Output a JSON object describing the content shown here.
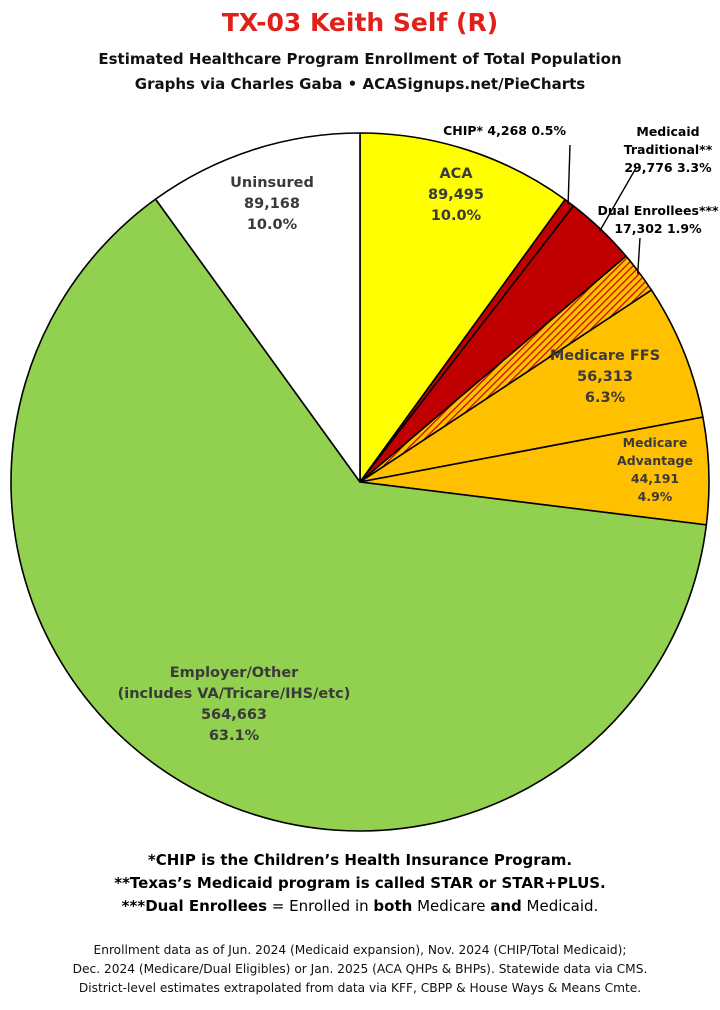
{
  "title": "TX-03 Keith Self (R)",
  "subtitle_line1": "Estimated Healthcare Program Enrollment of Total Population",
  "subtitle_line2": "Graphs via Charles Gaba  •  ACASignups.net/PieCharts",
  "chart_data": {
    "type": "pie",
    "start_angle_deg": 0,
    "direction": "clockwise",
    "slices": [
      {
        "name": "ACA",
        "label_lines": [
          "ACA",
          "89,495",
          "10.0%"
        ],
        "value": 89495,
        "percent": "10.0%",
        "color": "#ffff00",
        "pattern": "none"
      },
      {
        "name": "CHIP*",
        "label_lines": [
          "CHIP* 4,268 0.5%"
        ],
        "value": 4268,
        "percent": "0.5%",
        "color": "#c00000",
        "pattern": "none"
      },
      {
        "name": "Medicaid Traditional**",
        "label_lines": [
          "Medicaid",
          "Traditional**",
          "29,776 3.3%"
        ],
        "value": 29776,
        "percent": "3.3%",
        "color": "#c00000",
        "pattern": "none"
      },
      {
        "name": "Dual Enrollees***",
        "label_lines": [
          "Dual Enrollees***",
          "17,302 1.9%"
        ],
        "value": 17302,
        "percent": "1.9%",
        "color": "#ffc000",
        "pattern": "hatch"
      },
      {
        "name": "Medicare FFS",
        "label_lines": [
          "Medicare FFS",
          "56,313",
          "6.3%"
        ],
        "value": 56313,
        "percent": "6.3%",
        "color": "#ffc000",
        "pattern": "none"
      },
      {
        "name": "Medicare Advantage",
        "label_lines": [
          "Medicare",
          "Advantage",
          "44,191",
          "4.9%"
        ],
        "value": 44191,
        "percent": "4.9%",
        "color": "#ffc000",
        "pattern": "none"
      },
      {
        "name": "Employer/Other",
        "label_lines": [
          "Employer/Other",
          "(includes VA/Tricare/IHS/etc)",
          "564,663",
          "63.1%"
        ],
        "value": 564663,
        "percent": "63.1%",
        "color": "#92d050",
        "pattern": "none"
      },
      {
        "name": "Uninsured",
        "label_lines": [
          "Uninsured",
          "89,168",
          "10.0%"
        ],
        "value": 89168,
        "percent": "10.0%",
        "color": "#ffffff",
        "pattern": "none"
      }
    ]
  },
  "notes": {
    "line1": "*CHIP is the Children’s Health Insurance Program.",
    "line2_a": "**Texas’s Medicaid program is called ",
    "line2_b": "STAR or STAR+PLUS.",
    "line3_a": "***Dual Enrollees",
    "line3_b": " = Enrolled in ",
    "line3_c": "both",
    "line3_d": " Medicare ",
    "line3_e": "and",
    "line3_f": " Medicaid."
  },
  "footer": {
    "line1": "Enrollment data as of Jun. 2024 (Medicaid expansion), Nov. 2024 (CHIP/Total Medicaid);",
    "line2": "Dec. 2024 (Medicare/Dual Eligibles) or Jan. 2025 (ACA QHPs & BHPs). Statewide data via CMS.",
    "line3": "District-level estimates extrapolated from data via KFF, CBPP & House Ways & Means Cmte."
  }
}
